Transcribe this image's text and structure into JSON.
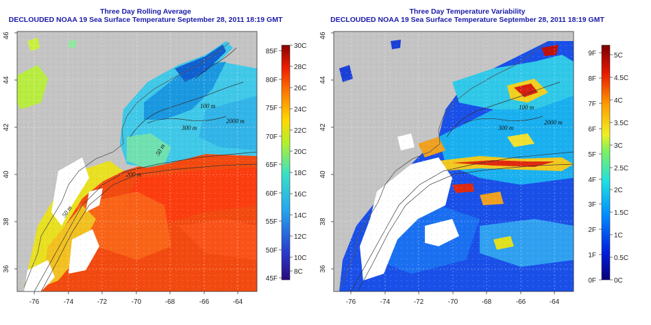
{
  "colors": {
    "land": "#c4c4c4",
    "nodata": "#ffffff",
    "title_color": "#1a1aa8"
  },
  "panels": [
    {
      "title_line1": "Three Day Rolling Average",
      "title_line2": "DECLOUDED NOAA 19 Sea Surface Temperature September 28, 2011 18:19 GMT",
      "x_ticks": [
        "-76",
        "-74",
        "-72",
        "-70",
        "-68",
        "-66",
        "-64"
      ],
      "y_ticks": [
        "36",
        "38",
        "40",
        "42",
        "44",
        "46"
      ],
      "colorbar_left_labels": [
        "85F",
        "80F",
        "75F",
        "70F",
        "65F",
        "60F",
        "55F",
        "50F",
        "45F"
      ],
      "colorbar_right_labels": [
        "30C",
        "28C",
        "26C",
        "24C",
        "22C",
        "20C",
        "18C",
        "16C",
        "14C",
        "12C",
        "10C",
        "8C"
      ],
      "contour_labels": [
        "100 m",
        "2000 m",
        "300 m",
        "50 m",
        "200 m",
        "50 m"
      ]
    },
    {
      "title_line1": "Three Day Temperature Variability",
      "title_line2": "DECLOUDED NOAA 19 Sea Surface Temperature September 28, 2011 18:19 GMT",
      "x_ticks": [
        "-76",
        "-74",
        "-72",
        "-70",
        "-68",
        "-66",
        "-64"
      ],
      "y_ticks": [
        "36",
        "38",
        "40",
        "42",
        "44",
        "46"
      ],
      "colorbar_left_labels": [
        "9F",
        "8F",
        "7F",
        "6F",
        "5F",
        "4F",
        "3F",
        "2F",
        "1F",
        "0F"
      ],
      "colorbar_right_labels": [
        "5C",
        "4.5C",
        "4C",
        "3.5C",
        "3C",
        "2.5C",
        "2C",
        "1.5C",
        "1C",
        "0.5C",
        "0C"
      ],
      "contour_labels": [
        "100 m",
        "2000 m",
        "300 m"
      ]
    }
  ]
}
